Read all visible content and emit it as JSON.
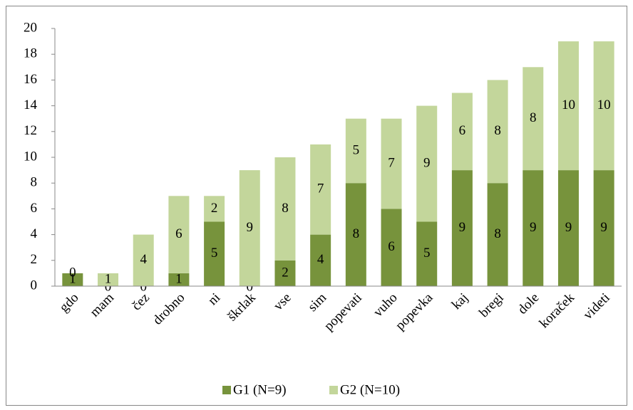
{
  "chart_data": {
    "type": "stacked_bar",
    "categories": [
      "gdo",
      "mam",
      "čez",
      "drobno",
      "ni",
      "škrlak",
      "vse",
      "sim",
      "popevati",
      "vuho",
      "popevka",
      "kaj",
      "bregi",
      "dole",
      "koraček",
      "videti"
    ],
    "series": [
      {
        "name": "G1 (N=9)",
        "color": "#77933c",
        "values": [
          1,
          0,
          0,
          1,
          5,
          0,
          2,
          4,
          8,
          6,
          5,
          9,
          8,
          9,
          9,
          9
        ]
      },
      {
        "name": "G2 (N=10)",
        "color": "#c3d69b",
        "values": [
          0,
          1,
          4,
          6,
          2,
          9,
          8,
          7,
          5,
          7,
          9,
          6,
          8,
          8,
          10,
          10
        ]
      }
    ],
    "ylim": [
      0,
      20
    ],
    "yticks": [
      0,
      2,
      4,
      6,
      8,
      10,
      12,
      14,
      16,
      18,
      20
    ],
    "grid": false,
    "legend": "bottom"
  }
}
